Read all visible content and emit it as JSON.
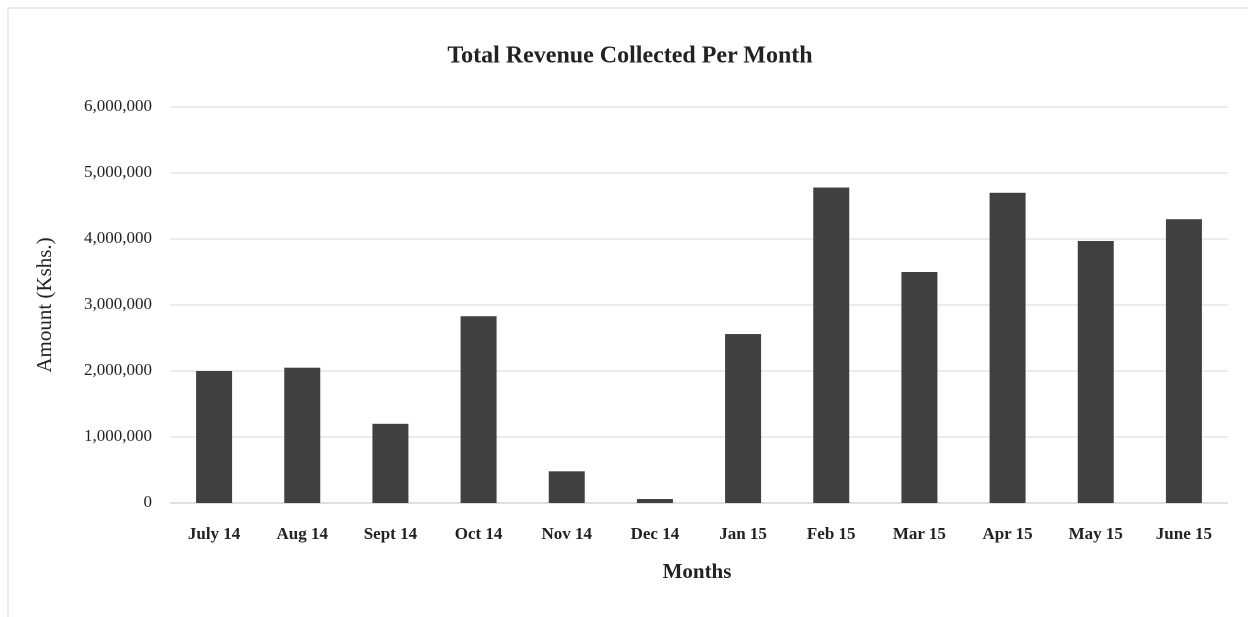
{
  "chart_data": {
    "type": "bar",
    "title": "Total Revenue Collected Per Month",
    "x_label": "Months",
    "y_label": "Amount (Kshs.)",
    "categories": [
      "July 14",
      "Aug 14",
      "Sept 14",
      "Oct 14",
      "Nov 14",
      "Dec 14",
      "Jan 15",
      "Feb 15",
      "Mar 15",
      "Apr 15",
      "May 15",
      "June 15"
    ],
    "values": [
      2000000,
      2050000,
      1200000,
      2830000,
      480000,
      60000,
      2560000,
      4780000,
      3500000,
      4700000,
      3970000,
      4300000
    ],
    "color": "#404040",
    "ylim": [
      0,
      6000000
    ],
    "yticks": [
      0,
      {
        "value": 1000000,
        "label": "1,000,000"
      },
      {
        "value": 2000000,
        "label": "2,000,000"
      },
      {
        "value": 3000000,
        "label": "3,000,000"
      },
      {
        "value": 4000000,
        "label": "4,000,000"
      },
      {
        "value": 5000000,
        "label": "5,000,000"
      },
      {
        "value": 6000000,
        "label": "6,000,000"
      }
    ],
    "grid": true
  }
}
